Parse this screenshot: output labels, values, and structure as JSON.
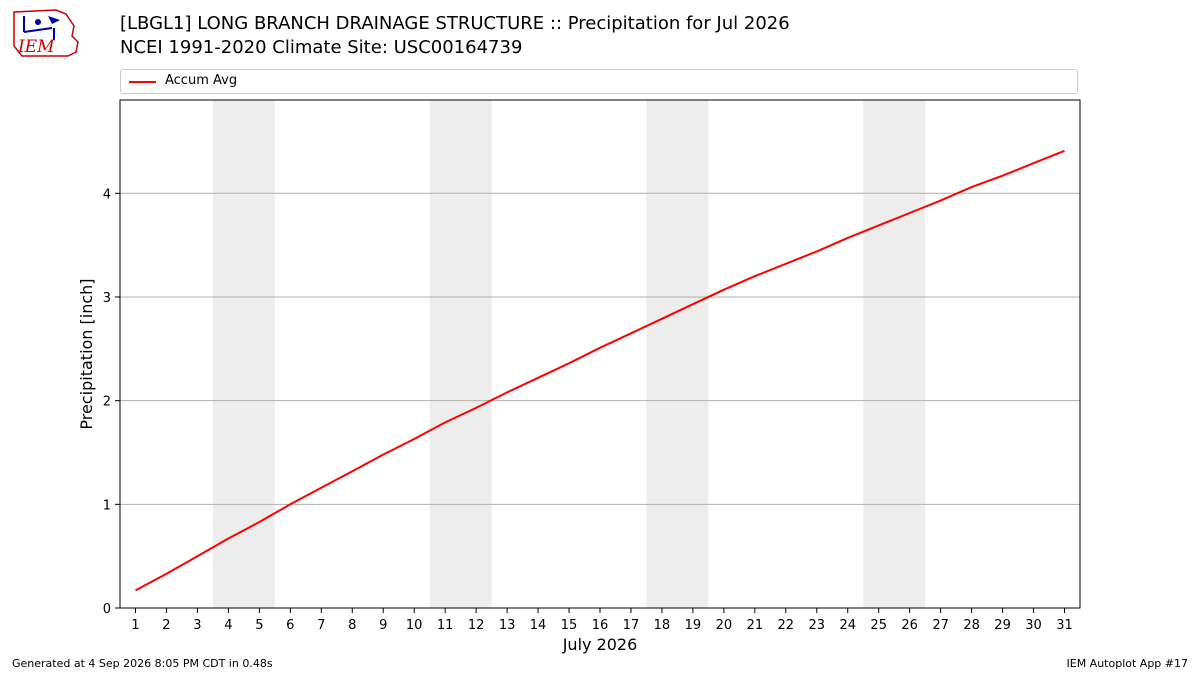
{
  "header": {
    "title_line1": "[LBGL1] LONG BRANCH DRAINAGE STRUCTURE :: Precipitation for Jul 2026",
    "title_line2": "NCEI 1991-2020 Climate Site: USC00164739"
  },
  "logo": {
    "text": "IEM",
    "color": "#cc0000",
    "accent": "#0000aa"
  },
  "footer": {
    "generated": "Generated at 4 Sep 2026 8:05 PM CDT in 0.48s",
    "app": "IEM Autoplot App #17"
  },
  "chart_data": {
    "type": "line",
    "xlabel": "July 2026",
    "ylabel": "Precipitation [inch]",
    "x": [
      1,
      2,
      3,
      4,
      5,
      6,
      7,
      8,
      9,
      10,
      11,
      12,
      13,
      14,
      15,
      16,
      17,
      18,
      19,
      20,
      21,
      22,
      23,
      24,
      25,
      26,
      27,
      28,
      29,
      30,
      31
    ],
    "xlim": [
      0.5,
      31.5
    ],
    "ylim": [
      0,
      4.9
    ],
    "yticks": [
      0,
      1,
      2,
      3,
      4
    ],
    "grid": "y",
    "legend": "top",
    "weekend_shading": [
      [
        3.5,
        5.5
      ],
      [
        10.5,
        12.5
      ],
      [
        17.5,
        19.5
      ],
      [
        24.5,
        26.5
      ]
    ],
    "series": [
      {
        "name": "Accum Avg",
        "color": "#ff0000",
        "values": [
          0.17,
          0.33,
          0.5,
          0.67,
          0.83,
          1.0,
          1.16,
          1.32,
          1.48,
          1.63,
          1.79,
          1.93,
          2.08,
          2.22,
          2.36,
          2.51,
          2.65,
          2.79,
          2.93,
          3.07,
          3.2,
          3.32,
          3.44,
          3.57,
          3.69,
          3.81,
          3.93,
          4.06,
          4.17,
          4.29,
          4.41
        ]
      }
    ]
  }
}
